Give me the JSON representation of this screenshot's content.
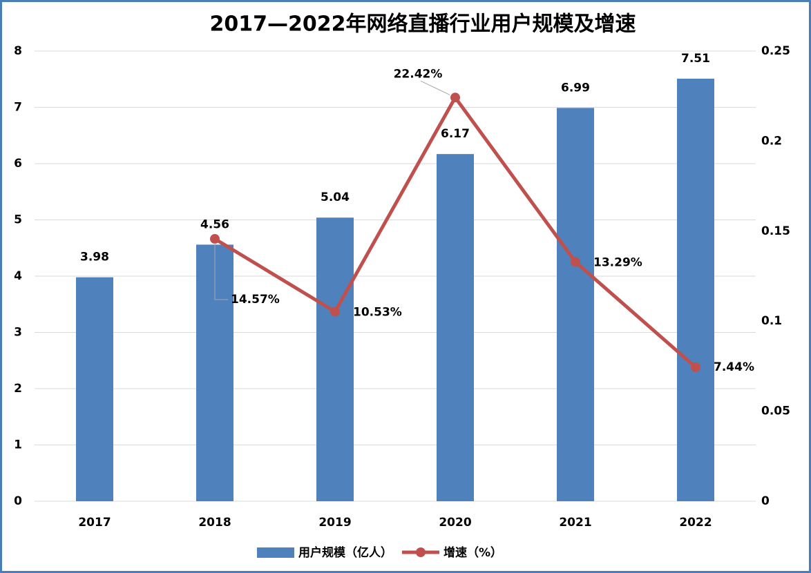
{
  "chart_data": {
    "type": "bar",
    "title": "2017—2022年网络直播行业用户规模及增速",
    "categories": [
      "2017",
      "2018",
      "2019",
      "2020",
      "2021",
      "2022"
    ],
    "series": [
      {
        "name": "用户规模（亿人）",
        "type": "bar",
        "color": "#4f81bd",
        "values": [
          3.98,
          4.56,
          5.04,
          6.17,
          6.99,
          7.51
        ]
      },
      {
        "name": "增速（%）",
        "type": "line",
        "axis": "y2",
        "color": "#c0504d",
        "values": [
          null,
          0.1457,
          0.1053,
          0.2242,
          0.1329,
          0.0744
        ],
        "value_labels": [
          null,
          "14.57%",
          "10.53%",
          "22.42%",
          "13.29%",
          "7.44%"
        ]
      }
    ],
    "ylim": [
      0,
      8
    ],
    "yticks": [
      0,
      1,
      2,
      3,
      4,
      5,
      6,
      7,
      8
    ],
    "y2lim": [
      0,
      0.25
    ],
    "y2ticks": [
      0,
      0.05,
      0.1,
      0.15,
      0.2,
      0.25
    ],
    "grid": true,
    "legend": "bottom"
  }
}
